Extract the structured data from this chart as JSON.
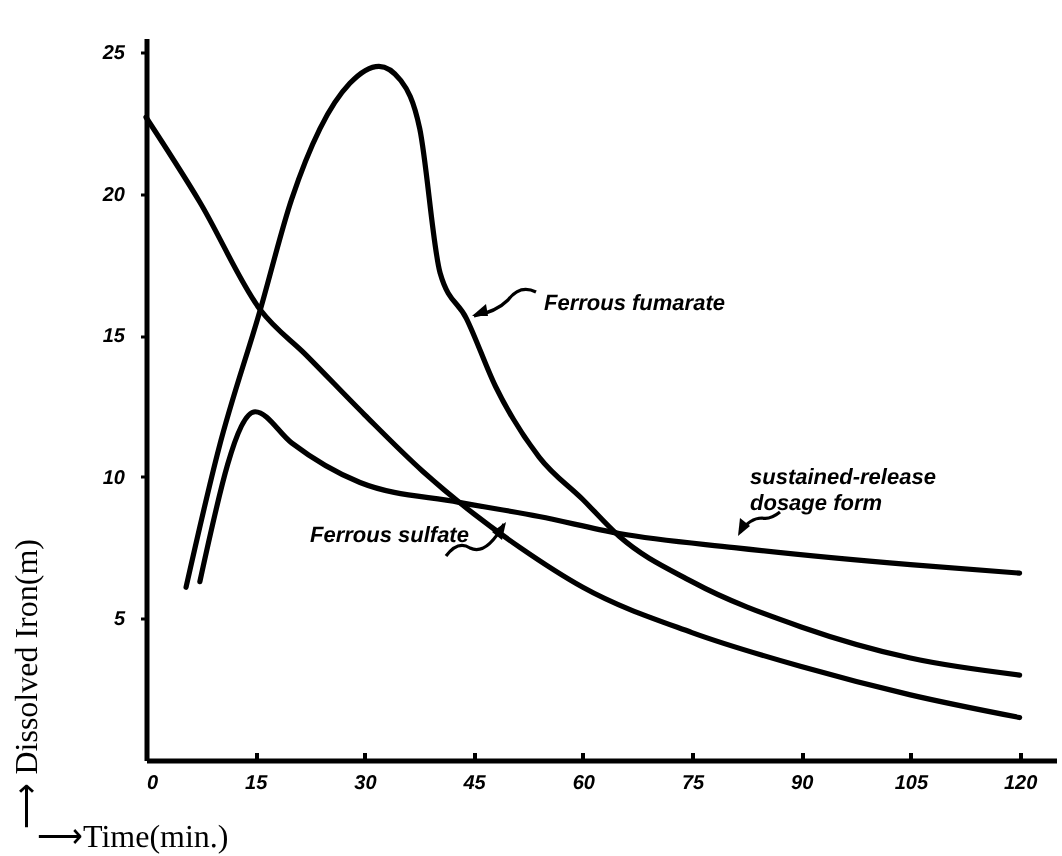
{
  "chart_data": {
    "type": "line",
    "xlabel": "⟶Time(min.)",
    "ylabel": "⟶ Dissolved Iron(m)",
    "xlim": [
      0,
      125
    ],
    "ylim": [
      0,
      25.5
    ],
    "xticks": [
      0,
      15,
      30,
      45,
      60,
      75,
      90,
      105,
      120
    ],
    "yticks": [
      5,
      10,
      15,
      20,
      25
    ],
    "grid": false,
    "marker": "none",
    "line_style": "solid",
    "series": [
      {
        "name": "Ferrous fumarate",
        "color": "#000000",
        "x": [
          5.5,
          10,
          15.7,
          20,
          23.9,
          28,
          32,
          35,
          37.6,
          40.4,
          44,
          48,
          54,
          60,
          65,
          75,
          90,
          105,
          120
        ],
        "values": [
          6.1,
          11,
          15.9,
          19.8,
          22.3,
          23.9,
          24.5,
          24,
          22.3,
          17.2,
          15.6,
          13.2,
          10.7,
          9.2,
          7.9,
          6.3,
          4.7,
          3.6,
          3.0
        ]
      },
      {
        "name": "Ferrous sulfate",
        "color": "#000000",
        "x": [
          0,
          7.4,
          15.7,
          22,
          30,
          38,
          45,
          51.4,
          60,
          75,
          90,
          105,
          120
        ],
        "values": [
          22.7,
          19.7,
          15.9,
          14.3,
          12.2,
          10.2,
          8.7,
          7.5,
          6.1,
          4.5,
          3.3,
          2.3,
          1.5
        ]
      },
      {
        "name": "sustained-release\ndosage form",
        "color": "#000000",
        "x": [
          7.4,
          15,
          20,
          29.4,
          43,
          54,
          65,
          80.8,
          105,
          120
        ],
        "values": [
          6.3,
          12.3,
          11.2,
          9.8,
          9.1,
          8.6,
          8.0,
          7.5,
          6.9,
          6.6
        ]
      }
    ]
  }
}
